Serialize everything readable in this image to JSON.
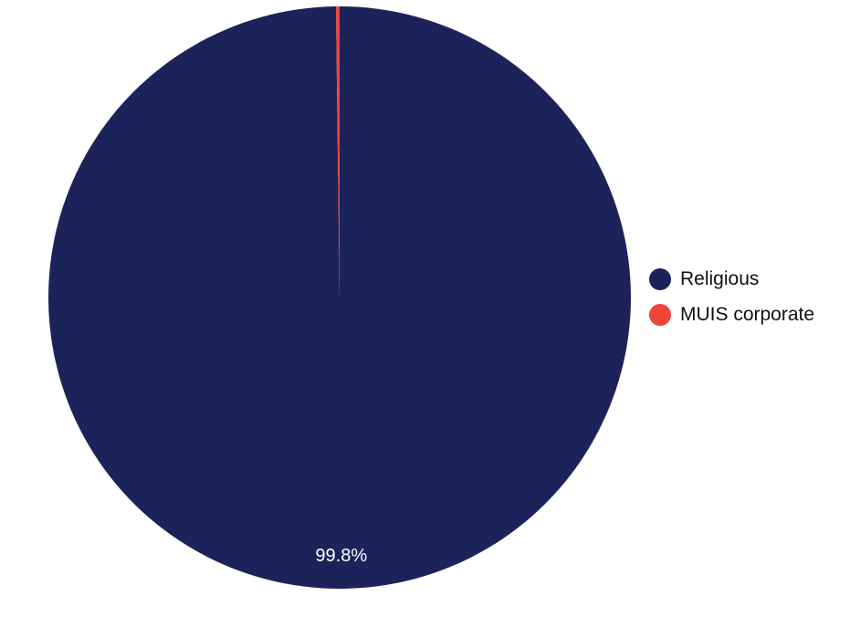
{
  "chart_data": {
    "type": "pie",
    "title": "",
    "slices": [
      {
        "label": "Religious",
        "value": 99.8,
        "color": "#1c235a",
        "display_label": "99.8%"
      },
      {
        "label": "MUIS corporate",
        "value": 0.2,
        "color": "#f0433a",
        "display_label": ""
      }
    ],
    "legend_position": "right",
    "start_angle": "12 o'clock",
    "direction": "clockwise"
  }
}
